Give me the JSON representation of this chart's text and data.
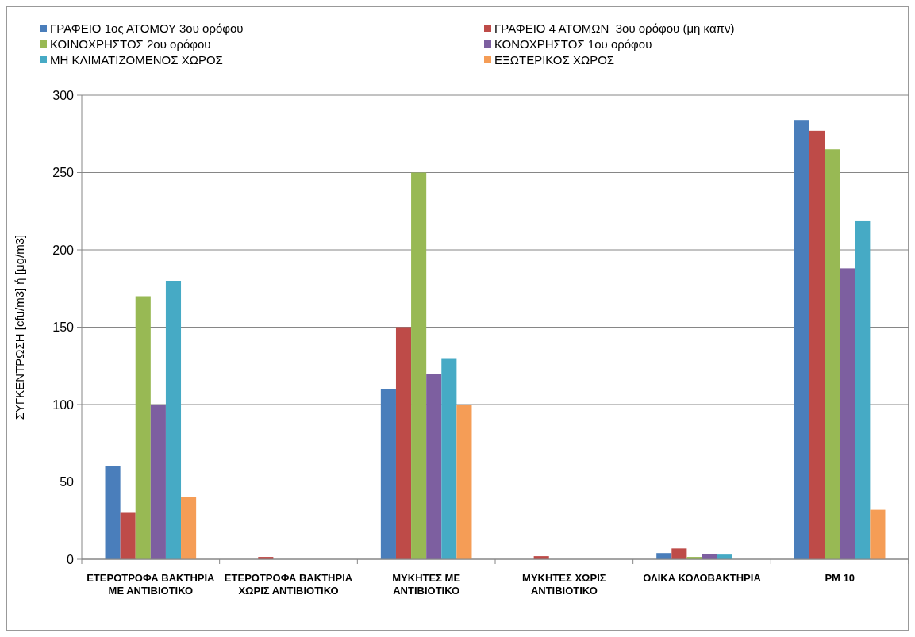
{
  "chart_data": {
    "type": "bar",
    "ylabel": "ΣΥΓΚΕΝΤΡΩΣΗ [cfu/m3] ή [μg/m3]",
    "categories": [
      "ΕΤΕΡΟΤΡΟΦΑ ΒΑΚΤΗΡΙΑ ΜΕ ΑΝΤΙΒΙΟΤΙΚΟ",
      "ΕΤΕΡΟΤΡΟΦΑ ΒΑΚΤΗΡΙΑ ΧΩΡΙΣ ΑΝΤΙΒΙΟΤΙΚΟ",
      "ΜΥΚΗΤΕΣ ΜΕ ΑΝΤΙΒΙΟΤΙΚΟ",
      "ΜΥΚΗΤΕΣ ΧΩΡΙΣ ΑΝΤΙΒΙΟΤΙΚΟ",
      "ΟΛΙΚΑ ΚΟΛΟΒΑΚΤΗΡΙΑ",
      "PM 10"
    ],
    "series": [
      {
        "name": "ΓΡΑΦΕΙΟ 1ος ΑΤΟΜΟΥ 3ου ορόφου",
        "color": "#4a7ebb",
        "values": [
          60,
          0,
          110,
          0,
          4,
          284
        ]
      },
      {
        "name": "ΓΡΑΦΕΙΟ 4 ΑΤΟΜΩΝ  3ου ορόφου (μη καπν)",
        "color": "#be4b48",
        "values": [
          30,
          1.5,
          150,
          2,
          7,
          277
        ]
      },
      {
        "name": "ΚΟΙΝΟΧΡΗΣΤΟΣ 2ου ορόφου",
        "color": "#98b954",
        "values": [
          170,
          0,
          250,
          0,
          1.5,
          265
        ]
      },
      {
        "name": "ΚΟΝΟΧΡΗΣΤΟΣ 1ου ορόφου",
        "color": "#7d5fa0",
        "values": [
          100,
          0,
          120,
          0,
          3.5,
          188
        ]
      },
      {
        "name": "ΜΗ ΚΛΙΜΑΤΙΖΟΜΕΝΟΣ ΧΩΡΟΣ",
        "color": "#46aac5",
        "values": [
          180,
          0,
          130,
          0,
          3,
          219
        ]
      },
      {
        "name": "ΕΞΩΤΕΡΙΚΟΣ ΧΩΡΟΣ",
        "color": "#f59d56",
        "values": [
          40,
          0,
          100,
          0,
          0,
          32
        ]
      }
    ],
    "ylim": [
      0,
      300
    ],
    "yticks": [
      0,
      50,
      100,
      150,
      200,
      250,
      300
    ],
    "grid": "y",
    "legend": "top left"
  }
}
